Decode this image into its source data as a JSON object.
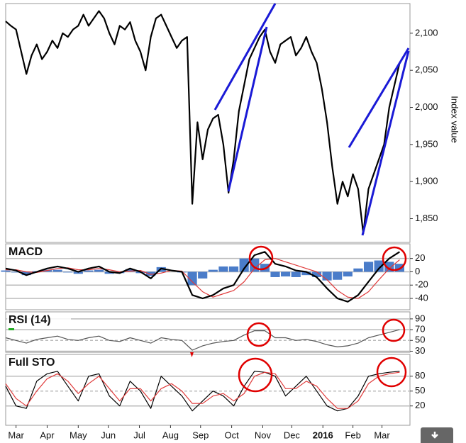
{
  "chart_data": [
    {
      "type": "line",
      "y_label": "Index value",
      "grid": false,
      "x": [
        0,
        5,
        10,
        15,
        20,
        25,
        30,
        35,
        40,
        45,
        50,
        55,
        60,
        65,
        70,
        75,
        80,
        85,
        90,
        95,
        100,
        105,
        110,
        115,
        120,
        125,
        130,
        135,
        140,
        145,
        150,
        155,
        160,
        165,
        170,
        175,
        180,
        185,
        190,
        195,
        200,
        205,
        210,
        215,
        220,
        225,
        230,
        235,
        240,
        245,
        250,
        255,
        260,
        265,
        270,
        275,
        280,
        285,
        290,
        295,
        300,
        305,
        310,
        315,
        320,
        325,
        330,
        335,
        340,
        345,
        350,
        355,
        360,
        365,
        370,
        375,
        380
      ],
      "xlim": [
        0,
        390
      ],
      "ylim": [
        1818,
        2140
      ],
      "yticks": [
        {
          "value": 1850,
          "label": "1,850"
        },
        {
          "value": 1900,
          "label": "1,900"
        },
        {
          "value": 1950,
          "label": "1,950"
        },
        {
          "value": 2000,
          "label": "2,000"
        },
        {
          "value": 2050,
          "label": "2,050"
        },
        {
          "value": 2100,
          "label": "2,100"
        }
      ],
      "series": [
        {
          "color": "#000000",
          "values": [
            2116,
            2110,
            2105,
            2075,
            2045,
            2070,
            2085,
            2065,
            2075,
            2090,
            2080,
            2100,
            2095,
            2105,
            2110,
            2125,
            2110,
            2120,
            2130,
            2120,
            2100,
            2085,
            2110,
            2105,
            2115,
            2090,
            2075,
            2050,
            2095,
            2120,
            2125,
            2110,
            2095,
            2080,
            2090,
            2095,
            1870,
            1980,
            1930,
            1970,
            1985,
            1990,
            1950,
            1885,
            1930,
            1995,
            2030,
            2065,
            2080,
            2095,
            2105,
            2075,
            2060,
            2085,
            2090,
            2095,
            2070,
            2080,
            2095,
            2075,
            2060,
            2025,
            1980,
            1920,
            1870,
            1900,
            1880,
            1910,
            1890,
            1830,
            1890,
            1910,
            1930,
            1950,
            2000,
            2030,
            2060
          ]
        }
      ]
    },
    {
      "type": "line",
      "title": "MACD",
      "grid": true,
      "x": [
        0,
        10,
        20,
        30,
        40,
        50,
        60,
        70,
        80,
        90,
        100,
        110,
        120,
        130,
        140,
        150,
        160,
        170,
        180,
        190,
        200,
        210,
        220,
        230,
        240,
        250,
        260,
        270,
        280,
        290,
        300,
        310,
        320,
        330,
        340,
        350,
        360,
        370,
        380
      ],
      "xlim": [
        0,
        390
      ],
      "ylim": [
        -57,
        42
      ],
      "yticks": [
        -40,
        -20,
        0,
        20
      ],
      "series": [
        {
          "type": "bar",
          "color": "#4a7cc9",
          "values": [
            2,
            -1,
            -5,
            1,
            3,
            3,
            -1,
            -3,
            2,
            3,
            -3,
            -2,
            4,
            -2,
            -6,
            7,
            0,
            -1,
            -20,
            -10,
            3,
            8,
            8,
            20,
            20,
            12,
            -8,
            -7,
            -8,
            -5,
            -8,
            -13,
            -12,
            -7,
            5,
            15,
            17,
            15,
            12
          ]
        },
        {
          "color": "#e03a3a",
          "values": [
            3,
            3,
            0,
            -1,
            2,
            5,
            6,
            3,
            3,
            5,
            3,
            0,
            1,
            2,
            -4,
            -2,
            2,
            1,
            -15,
            -30,
            -38,
            -33,
            -28,
            -15,
            5,
            18,
            20,
            15,
            10,
            5,
            0,
            -12,
            -28,
            -38,
            -40,
            -30,
            -12,
            5,
            18
          ]
        },
        {
          "color": "#000000",
          "values": [
            5,
            2,
            -5,
            0,
            5,
            8,
            5,
            0,
            5,
            8,
            0,
            -2,
            5,
            0,
            -10,
            5,
            2,
            0,
            -35,
            -40,
            -35,
            -25,
            -20,
            5,
            25,
            30,
            12,
            8,
            2,
            0,
            -8,
            -25,
            -40,
            -45,
            -35,
            -15,
            5,
            20,
            30
          ]
        }
      ]
    },
    {
      "type": "line",
      "title": "RSI (14)",
      "grid": true,
      "x": [
        0,
        10,
        20,
        30,
        40,
        50,
        60,
        70,
        80,
        90,
        100,
        110,
        120,
        130,
        140,
        150,
        160,
        170,
        180,
        190,
        200,
        210,
        220,
        230,
        240,
        250,
        260,
        270,
        280,
        290,
        300,
        310,
        320,
        330,
        340,
        350,
        360,
        370,
        380
      ],
      "xlim": [
        0,
        390
      ],
      "ylim": [
        28,
        103
      ],
      "yticks": [
        30,
        50,
        70,
        90
      ],
      "series": [
        {
          "color": "#555555",
          "values": [
            55,
            50,
            45,
            52,
            55,
            58,
            52,
            50,
            55,
            58,
            50,
            48,
            55,
            50,
            45,
            55,
            52,
            50,
            32,
            40,
            45,
            48,
            50,
            60,
            68,
            68,
            55,
            55,
            50,
            52,
            48,
            42,
            38,
            40,
            45,
            55,
            60,
            65,
            70
          ]
        }
      ]
    },
    {
      "type": "line",
      "title": "Full STO",
      "grid": true,
      "x": [
        0,
        10,
        20,
        30,
        40,
        50,
        60,
        70,
        80,
        90,
        100,
        110,
        120,
        130,
        140,
        150,
        160,
        170,
        180,
        190,
        200,
        210,
        220,
        230,
        240,
        250,
        260,
        270,
        280,
        290,
        300,
        310,
        320,
        330,
        340,
        350,
        360,
        370,
        380
      ],
      "xlim": [
        0,
        390
      ],
      "ylim": [
        -19,
        124
      ],
      "yticks": [
        20,
        50,
        80
      ],
      "xticks": [
        {
          "value": 10,
          "label": "Mar"
        },
        {
          "value": 40,
          "label": "Apr"
        },
        {
          "value": 70,
          "label": "May"
        },
        {
          "value": 99,
          "label": "Jun"
        },
        {
          "value": 129,
          "label": "Jul"
        },
        {
          "value": 159,
          "label": "Aug"
        },
        {
          "value": 188,
          "label": "Sep"
        },
        {
          "value": 218,
          "label": "Oct"
        },
        {
          "value": 248,
          "label": "Nov"
        },
        {
          "value": 276,
          "label": "Dec"
        },
        {
          "value": 306,
          "label": "2016"
        },
        {
          "value": 335,
          "label": "Feb"
        },
        {
          "value": 363,
          "label": "Mar"
        }
      ],
      "series": [
        {
          "color": "#000000",
          "values": [
            60,
            20,
            15,
            70,
            85,
            90,
            60,
            30,
            80,
            85,
            40,
            20,
            70,
            50,
            15,
            80,
            60,
            40,
            10,
            30,
            50,
            40,
            20,
            60,
            90,
            88,
            80,
            40,
            60,
            80,
            50,
            20,
            10,
            15,
            40,
            80,
            85,
            88,
            90
          ]
        },
        {
          "color": "#e03a3a",
          "values": [
            65,
            35,
            20,
            50,
            75,
            85,
            70,
            45,
            65,
            80,
            55,
            30,
            55,
            55,
            30,
            55,
            65,
            50,
            25,
            25,
            40,
            45,
            30,
            45,
            80,
            88,
            85,
            55,
            55,
            70,
            60,
            35,
            15,
            15,
            30,
            65,
            80,
            85,
            88
          ]
        }
      ]
    }
  ]
}
